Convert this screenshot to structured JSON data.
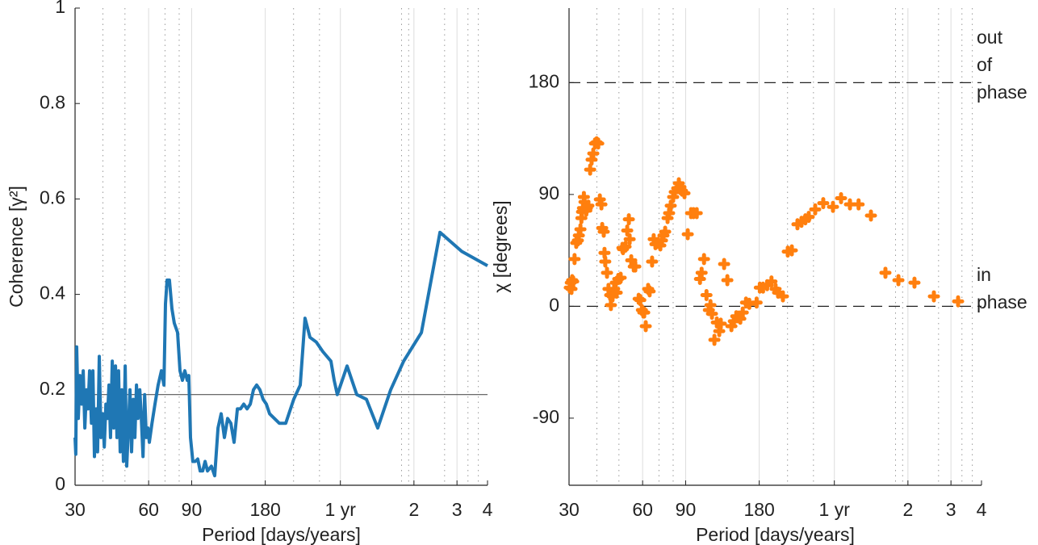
{
  "chart_data": [
    {
      "type": "line",
      "xlabel": "Period [days/years]",
      "ylabel": "Coherence [γ²]",
      "log_x": true,
      "color": "#1f77b4",
      "xlim": [
        30,
        1461
      ],
      "xticks": [
        30,
        60,
        90,
        180,
        {
          "value": 365.25,
          "label": "1 yr"
        },
        {
          "value": 730.5,
          "label": "2"
        },
        {
          "value": 1095.75,
          "label": "3"
        },
        {
          "value": 1461,
          "label": "4"
        }
      ],
      "minor_xgrid": [
        39,
        48,
        70,
        80,
        235,
        300,
        650,
        695,
        975,
        1215,
        1340
      ],
      "ylim": [
        0,
        1
      ],
      "yticks": [
        0,
        0.2,
        0.4,
        0.6,
        0.8,
        1
      ],
      "grid": true,
      "reference_lines": [
        0.19
      ],
      "reference_color": "#555555",
      "x": [
        30,
        30.2,
        30.46,
        30.93,
        31.4,
        31.9,
        32.4,
        32.9,
        33.4,
        33.9,
        34.4,
        35.0,
        35.5,
        36.0,
        36.6,
        37.1,
        37.7,
        38.3,
        38.9,
        39.5,
        40.1,
        40.7,
        41.3,
        41.9,
        42.6,
        43.2,
        43.9,
        44.5,
        45.2,
        45.9,
        46.6,
        47.3,
        48.1,
        48.8,
        49.6,
        50.3,
        51.1,
        51.9,
        52.7,
        53.5,
        54.3,
        55.2,
        56.0,
        56.9,
        57.8,
        58.7,
        59.6,
        60.4,
        61.9,
        63.7,
        65.6,
        67.7,
        69.3,
        70.3,
        71.4,
        73.0,
        74.7,
        76.4,
        78.8,
        80.6,
        82.5,
        84.4,
        86.3,
        87.6,
        89.0,
        91.0,
        93.1,
        95.3,
        97.5,
        99.8,
        102.1,
        104.5,
        108.4,
        111.8,
        115.3,
        118.8,
        122.5,
        126.3,
        130.2,
        134.2,
        138.4,
        142.6,
        147.0,
        151.6,
        156.3,
        161.0,
        166.0,
        171.1,
        176.4,
        181.9,
        187.5,
        196.2,
        205.4,
        218.3,
        235.4,
        250.3,
        261.9,
        274.2,
        291.3,
        309.6,
        334.1,
        344.4,
        355.0,
        371.7,
        389.2,
        407.3,
        426.4,
        466.9,
        519.6,
        586.5,
        662.8,
        783.5,
        933.5,
        1146.5,
        1461
      ],
      "values": [
        0.1,
        0.065,
        0.29,
        0.14,
        0.23,
        0.17,
        0.24,
        0.12,
        0.2,
        0.16,
        0.24,
        0.13,
        0.24,
        0.06,
        0.16,
        0.07,
        0.27,
        0.1,
        0.15,
        0.08,
        0.17,
        0.14,
        0.21,
        0.1,
        0.26,
        0.12,
        0.25,
        0.1,
        0.24,
        0.07,
        0.2,
        0.05,
        0.25,
        0.04,
        0.12,
        0.2,
        0.07,
        0.18,
        0.1,
        0.21,
        0.14,
        0.2,
        0.14,
        0.06,
        0.19,
        0.1,
        0.12,
        0.09,
        0.13,
        0.17,
        0.21,
        0.24,
        0.21,
        0.38,
        0.43,
        0.43,
        0.37,
        0.34,
        0.32,
        0.24,
        0.22,
        0.24,
        0.22,
        0.23,
        0.1,
        0.05,
        0.05,
        0.055,
        0.03,
        0.03,
        0.05,
        0.03,
        0.04,
        0.02,
        0.12,
        0.15,
        0.1,
        0.14,
        0.13,
        0.09,
        0.16,
        0.16,
        0.17,
        0.16,
        0.17,
        0.2,
        0.21,
        0.2,
        0.18,
        0.17,
        0.15,
        0.14,
        0.13,
        0.13,
        0.18,
        0.21,
        0.35,
        0.31,
        0.3,
        0.28,
        0.26,
        0.22,
        0.19,
        0.22,
        0.25,
        0.22,
        0.19,
        0.18,
        0.12,
        0.2,
        0.26,
        0.32,
        0.53,
        0.49,
        0.46
      ]
    },
    {
      "type": "scatter",
      "xlabel": "Period [days/years]",
      "ylabel": "χ [degrees]",
      "log_x": true,
      "color": "#ff7f0e",
      "xlim": [
        30,
        1461
      ],
      "xticks": [
        30,
        60,
        90,
        180,
        {
          "value": 365.25,
          "label": "1 yr"
        },
        {
          "value": 730.5,
          "label": "2"
        },
        {
          "value": 1095.75,
          "label": "3"
        },
        {
          "value": 1461,
          "label": "4"
        }
      ],
      "minor_xgrid": [
        39,
        48,
        70,
        80,
        235,
        300,
        650,
        695,
        975,
        1215,
        1340
      ],
      "ylim": [
        -144,
        240
      ],
      "yticks": [
        -90,
        0,
        90,
        180
      ],
      "grid": true,
      "reference_lines": [
        0,
        180
      ],
      "reference_color": "#222222",
      "annotations": [
        [
          "out",
          "of",
          "phase"
        ],
        [
          "in",
          "phase"
        ]
      ],
      "x": [
        30.2,
        30.5,
        30.7,
        30.9,
        31.2,
        31.6,
        32.1,
        32.6,
        32.9,
        33.4,
        33.7,
        33.9,
        34.2,
        34.5,
        34.7,
        35.3,
        35.5,
        36.0,
        36.6,
        37.1,
        37.7,
        38.3,
        38.9,
        39.5,
        40.1,
        40.7,
        41.0,
        41.6,
        41.9,
        42.2,
        42.9,
        43.5,
        44.2,
        44.5,
        45.2,
        45.9,
        46.6,
        47.0,
        47.7,
        48.8,
        49.6,
        49.9,
        51.1,
        51.9,
        52.7,
        53.1,
        53.9,
        55.2,
        56.0,
        57.8,
        58.7,
        59.6,
        60.4,
        60.9,
        61.8,
        63.2,
        64.1,
        65.6,
        66.6,
        67.7,
        69.3,
        70.9,
        72.0,
        73.0,
        74.2,
        75.9,
        77.0,
        78.2,
        80.0,
        81.2,
        83.1,
        84.4,
        85.7,
        87.0,
        89.0,
        91.8,
        94.7,
        96.9,
        99.9,
        103.0,
        104.6,
        107.0,
        109.5,
        112.0,
        113.7,
        115.3,
        118.0,
        120.7,
        123.5,
        125.3,
        129.3,
        133.3,
        138.5,
        141.7,
        145.0,
        150.6,
        154.1,
        158.9,
        163.9,
        175.6,
        181.0,
        186.6,
        193.9,
        202.0,
        210.0,
        215.0,
        225.0,
        235.5,
        244.7,
        258.0,
        268.0,
        278.0,
        287.0,
        305.0,
        329.0,
        360.6,
        389.1,
        423.1,
        459.0,
        515.6,
        591.0,
        667.9,
        777.0,
        933.0,
        1172.0
      ],
      "values": [
        15,
        19,
        14,
        21,
        20,
        38,
        51,
        53,
        57,
        62,
        71,
        76,
        79,
        88,
        84,
        77,
        79,
        81,
        110,
        118,
        123,
        131,
        132,
        131,
        86,
        82,
        63,
        60,
        43,
        36,
        27,
        14,
        9,
        1,
        8,
        14,
        19,
        11,
        22,
        23,
        47,
        46,
        48,
        61,
        70,
        54,
        37,
        32,
        32,
        6,
        5,
        -3,
        -5,
        -5,
        -16,
        14,
        12,
        36,
        54,
        50,
        51,
        49,
        53,
        57,
        60,
        71,
        75,
        81,
        88,
        92,
        95,
        99,
        96,
        93,
        91,
        58,
        75,
        75,
        75,
        22,
        27,
        38,
        9,
        -3,
        1,
        -6,
        -27,
        -13,
        -20,
        -14,
        34,
        21,
        -16,
        -12,
        -8,
        -10,
        -5,
        3,
        2,
        3,
        15,
        15,
        17,
        20,
        14,
        11,
        8,
        44,
        45,
        66,
        68,
        70,
        72,
        78,
        83,
        80,
        87,
        82,
        82,
        73,
        27,
        21,
        19,
        8,
        4
      ]
    }
  ]
}
